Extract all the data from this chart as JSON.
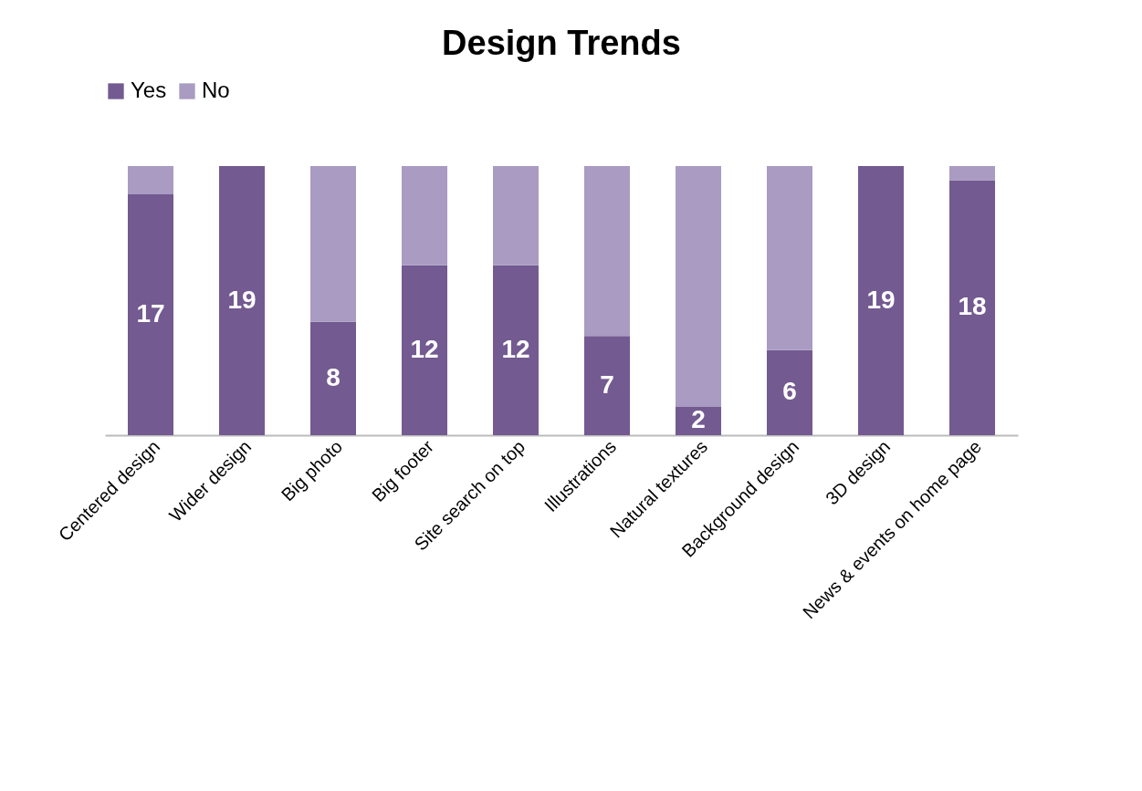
{
  "chart_data": {
    "type": "bar",
    "title": "Design Trends",
    "stacked": true,
    "legend": "top",
    "categories": [
      "Centered design",
      "Wider design",
      "Big photo",
      "Big footer",
      "Site search on top",
      "Illustrations",
      "Natural textures",
      "Background design",
      "3D design",
      "News & events on home page"
    ],
    "series": [
      {
        "name": "Yes",
        "color": "#735a91",
        "values": [
          17,
          19,
          8,
          12,
          12,
          7,
          2,
          6,
          19,
          18
        ],
        "value_labels": [
          "17",
          "19",
          "8",
          "12",
          "12",
          "7",
          "2",
          "6",
          "19",
          "18"
        ]
      },
      {
        "name": "No",
        "color": "#a99bc2",
        "values": [
          2,
          0,
          11,
          7,
          7,
          12,
          17,
          13,
          0,
          1
        ]
      }
    ]
  }
}
